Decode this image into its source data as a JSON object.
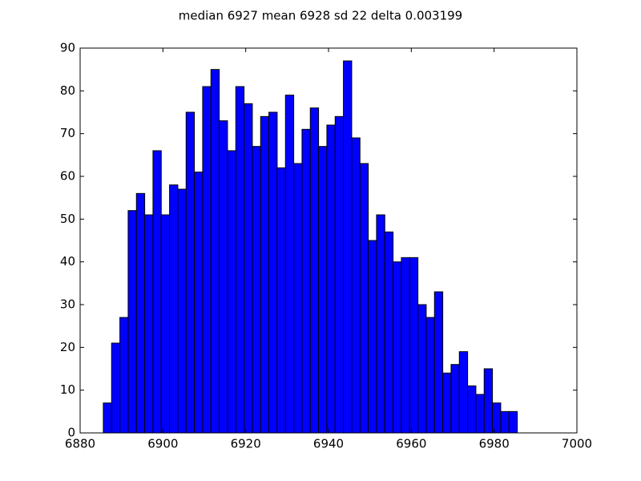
{
  "chart_data": {
    "type": "histogram",
    "title": "median 6927 mean 6928 sd 22 delta 0.003199",
    "bins": [
      6885.6,
      6887.6,
      6889.6,
      6891.6,
      6893.6,
      6895.6,
      6897.6,
      6899.6,
      6901.6,
      6903.6,
      6905.6,
      6907.6,
      6909.6,
      6911.6,
      6913.6,
      6915.6,
      6917.6,
      6919.6,
      6921.6,
      6923.6,
      6925.6,
      6927.6,
      6929.6,
      6931.6,
      6933.6,
      6935.6,
      6937.6,
      6939.6,
      6941.6,
      6943.6,
      6945.6,
      6947.6,
      6949.6,
      6951.6,
      6953.6,
      6955.6,
      6957.6,
      6959.6,
      6961.6,
      6963.6,
      6965.6,
      6967.6,
      6969.6,
      6971.6,
      6973.6,
      6975.6,
      6977.6,
      6979.6,
      6981.6,
      6983.6,
      6985.6
    ],
    "counts": [
      7,
      21,
      27,
      52,
      56,
      51,
      66,
      51,
      58,
      57,
      75,
      61,
      81,
      85,
      73,
      66,
      81,
      77,
      67,
      74,
      75,
      62,
      79,
      63,
      71,
      76,
      67,
      72,
      74,
      87,
      69,
      63,
      45,
      51,
      47,
      40,
      41,
      41,
      30,
      27,
      33,
      14,
      16,
      19,
      11,
      9,
      15,
      7,
      5,
      5
    ],
    "color": "#0000ff",
    "xlim": [
      6880,
      7000
    ],
    "xticks": [
      6880,
      6900,
      6920,
      6940,
      6960,
      6980,
      7000
    ],
    "ylim": [
      0,
      90
    ],
    "yticks": [
      0,
      10,
      20,
      30,
      40,
      50,
      60,
      70,
      80,
      90
    ]
  }
}
